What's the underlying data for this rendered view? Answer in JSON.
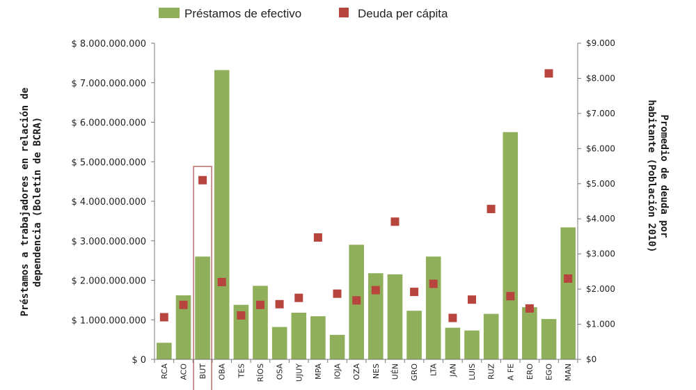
{
  "chart_data": {
    "type": "bar",
    "legend": {
      "placement": "top",
      "entries": [
        {
          "name": "Préstamos de efectivo",
          "color": "#8faf5a",
          "marker": "bar"
        },
        {
          "name": "Deuda per cápita",
          "color": "#b8453d",
          "marker": "square"
        }
      ]
    },
    "ylabel_left_lines": [
      "Préstamos a trabajadores en relación de",
      "dependencia (Boletín de BCRA)"
    ],
    "ylabel_right_lines": [
      "Promedio de deuda por",
      "habitante (Población 2010)"
    ],
    "left_axis": {
      "ylim": [
        0,
        8000000000
      ],
      "ticks": [
        {
          "value": 0,
          "label": "$ 0"
        },
        {
          "value": 1000000000,
          "label": "$ 1.000.000.000"
        },
        {
          "value": 2000000000,
          "label": "$ 2.000.000.000"
        },
        {
          "value": 3000000000,
          "label": "$ 3.000.000.000"
        },
        {
          "value": 4000000000,
          "label": "$ 4.000.000.000"
        },
        {
          "value": 5000000000,
          "label": "$ 5.000.000.000"
        },
        {
          "value": 6000000000,
          "label": "$ 6.000.000.000"
        },
        {
          "value": 7000000000,
          "label": "$ 7.000.000.000"
        },
        {
          "value": 8000000000,
          "label": "$ 8.000.000.000"
        }
      ]
    },
    "right_axis": {
      "ylim": [
        0,
        9000
      ],
      "ticks": [
        {
          "value": 0,
          "label": "$0"
        },
        {
          "value": 1000,
          "label": "$1.000"
        },
        {
          "value": 2000,
          "label": "$2.000"
        },
        {
          "value": 3000,
          "label": "$3.000"
        },
        {
          "value": 4000,
          "label": "$4.000"
        },
        {
          "value": 5000,
          "label": "$5.000"
        },
        {
          "value": 6000,
          "label": "$6.000"
        },
        {
          "value": 7000,
          "label": "$7.000"
        },
        {
          "value": 8000,
          "label": "$8.000"
        },
        {
          "value": 9000,
          "label": "$9.000"
        }
      ]
    },
    "grid": false,
    "categories": [
      "RCA",
      "ACO",
      "BUT",
      "OBA",
      "TES",
      "RÍOS",
      "OSA",
      "UJUY",
      "MPA",
      "IOJA",
      "OZA",
      "NES",
      "UÉN",
      "GRO",
      "LTA",
      "JAN",
      "LUIS",
      "RUZ",
      "A FE",
      "ERO",
      "EGO",
      "MAN"
    ],
    "highlighted_category": "BUT",
    "series": [
      {
        "name": "Préstamos de efectivo",
        "type": "bar",
        "axis": "left",
        "color": "#8faf5a",
        "values": [
          420000000,
          1620000000,
          2600000000,
          7320000000,
          1380000000,
          1860000000,
          820000000,
          1180000000,
          1090000000,
          620000000,
          2900000000,
          2180000000,
          2150000000,
          1230000000,
          2600000000,
          800000000,
          730000000,
          1150000000,
          5750000000,
          1320000000,
          1020000000,
          3340000000
        ]
      },
      {
        "name": "Deuda per cápita",
        "type": "scatter",
        "axis": "right",
        "color": "#b8453d",
        "values": [
          1200,
          1550,
          5100,
          2200,
          1250,
          1550,
          1570,
          1750,
          3470,
          1870,
          1680,
          1970,
          3920,
          1920,
          2150,
          1180,
          1700,
          4280,
          1800,
          1450,
          8140,
          2300
        ]
      }
    ]
  }
}
